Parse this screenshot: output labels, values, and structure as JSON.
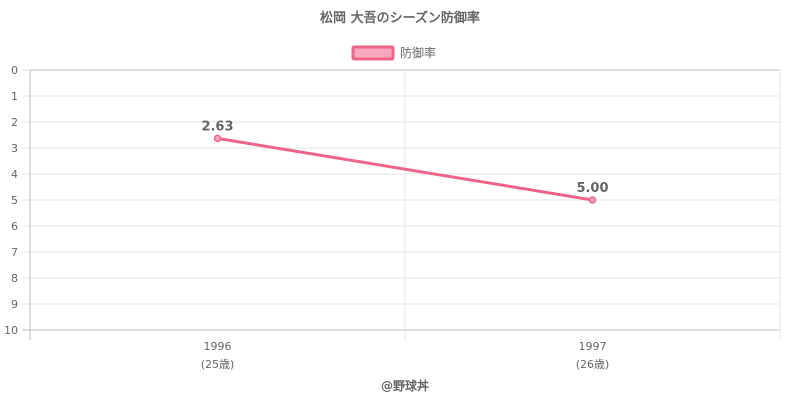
{
  "chart_data": {
    "type": "line",
    "title": "松岡 大吾のシーズン防御率",
    "categories": [
      "1996",
      "1997"
    ],
    "category_sublabels": [
      "(25歳)",
      "(26歳)"
    ],
    "series": [
      {
        "name": "防御率",
        "values": [
          2.63,
          5.0
        ],
        "value_labels": [
          "2.63",
          "5.00"
        ],
        "color": "#f0648c",
        "fill": "#f7a8bd"
      }
    ],
    "ylim": [
      0,
      10
    ],
    "y_reversed": true,
    "y_ticks": [
      "0",
      "1",
      "2",
      "3",
      "4",
      "5",
      "6",
      "7",
      "8",
      "9",
      "10"
    ],
    "grid": true,
    "legend_position": "top"
  },
  "credit": "@野球丼"
}
